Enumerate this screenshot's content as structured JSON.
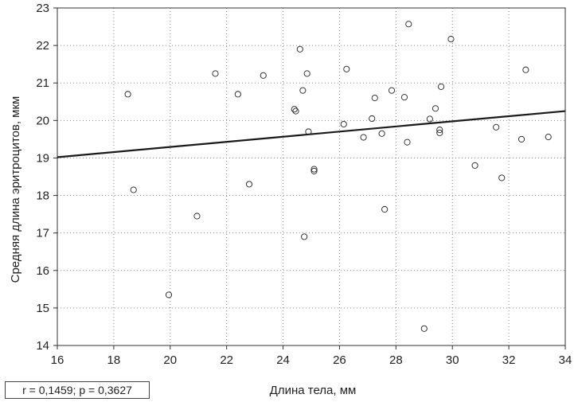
{
  "chart_data": {
    "type": "scatter",
    "xlabel": "Длина тела, мм",
    "ylabel": "Средняя длина эритроцитов, мкм",
    "xlim": [
      16,
      34
    ],
    "ylim": [
      14,
      23
    ],
    "xticks": [
      16,
      18,
      20,
      22,
      24,
      26,
      28,
      30,
      32,
      34
    ],
    "yticks": [
      14,
      15,
      16,
      17,
      18,
      19,
      20,
      21,
      22,
      23
    ],
    "grid": "dotted",
    "annotation": "r = 0,1459; p = 0,3627",
    "regression": {
      "x": [
        16,
        34
      ],
      "y": [
        19.02,
        20.25
      ]
    },
    "series": [
      {
        "x": [
          18.5,
          18.7,
          19.95,
          20.95,
          21.6,
          22.4,
          22.8,
          23.3,
          24.4,
          24.45,
          24.6,
          24.7,
          24.75,
          24.85,
          24.9,
          25.1,
          25.1,
          26.15,
          26.25,
          26.85,
          27.15,
          27.25,
          27.5,
          27.6,
          27.85,
          28.3,
          28.4,
          28.45,
          29.0,
          29.2,
          29.4,
          29.55,
          29.55,
          29.6,
          29.95,
          30.8,
          31.55,
          31.75,
          32.45,
          32.6,
          33.4
        ],
        "y": [
          20.7,
          18.15,
          15.35,
          17.45,
          21.25,
          20.7,
          18.3,
          21.2,
          20.3,
          20.25,
          21.9,
          20.8,
          16.9,
          21.25,
          19.7,
          18.7,
          18.65,
          19.9,
          21.37,
          19.55,
          20.05,
          20.6,
          19.65,
          17.63,
          20.8,
          20.62,
          19.42,
          22.57,
          14.45,
          20.04,
          20.32,
          19.75,
          19.67,
          20.9,
          22.17,
          18.8,
          19.82,
          18.47,
          19.5,
          21.35,
          19.56
        ]
      }
    ]
  }
}
